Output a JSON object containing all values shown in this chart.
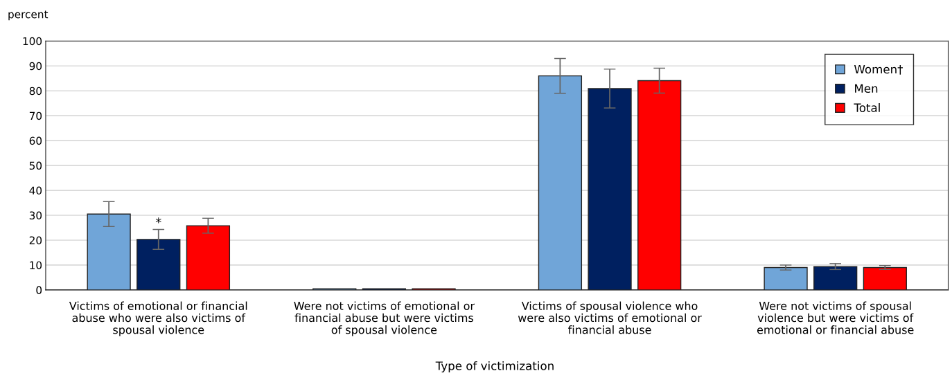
{
  "chart_data": {
    "type": "bar",
    "categories": [
      "Victims of emotional or financial abuse who were also victims of spousal violence",
      "Were not victims of emotional or financial abuse but were victims of spousal violence",
      "Victims of spousal violence who were also victims of emotional or financial abuse",
      "Were not victims of spousal violence but were victims of emotional or financial abuse"
    ],
    "series": [
      {
        "name": "Women†",
        "color": "#70a5d8",
        "values": [
          30.5,
          0.5,
          86.0,
          9.0
        ],
        "errors": [
          5.0,
          null,
          7.0,
          1.0
        ]
      },
      {
        "name": "Men",
        "color": "#002060",
        "values": [
          20.3,
          0.5,
          80.9,
          9.4
        ],
        "errors": [
          4.0,
          null,
          7.8,
          1.2
        ]
      },
      {
        "name": "Total",
        "color": "#ff0000",
        "values": [
          25.8,
          0.5,
          84.1,
          9.0
        ],
        "errors": [
          3.0,
          null,
          5.0,
          0.8
        ]
      }
    ],
    "ylabel": "percent",
    "xlabel": "Type of victimization",
    "ylim": [
      0,
      100
    ],
    "yticks": [
      0,
      10,
      20,
      30,
      40,
      50,
      60,
      70,
      80,
      90,
      100
    ],
    "annotations": [
      {
        "text": "*",
        "x": "Victims of emotional or financial abuse who were also victims of spousal violence",
        "y": 24.3
      }
    ],
    "grid": "y",
    "legend": "top right"
  }
}
